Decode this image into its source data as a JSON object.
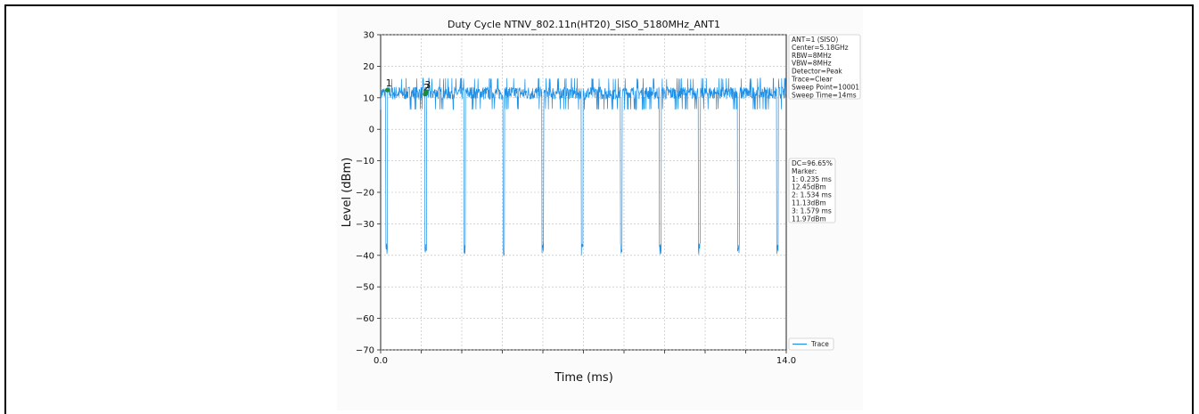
{
  "chart_data": {
    "type": "line",
    "title": "Duty Cycle NTNV_802.11n(HT20)_SISO_5180MHz_ANT1",
    "xlabel": "Time (ms)",
    "ylabel": "Level (dBm)",
    "xlim": [
      0.0,
      14.0
    ],
    "ylim": [
      -70,
      30
    ],
    "x_tick_labels": [
      "0.0",
      "14.0"
    ],
    "y_ticks": [
      30,
      20,
      10,
      0,
      -10,
      -20,
      -30,
      -40,
      -50,
      -60,
      -70
    ],
    "y_tick_labels": [
      "30",
      "20",
      "10",
      "0",
      "−10",
      "−20",
      "−30",
      "−40",
      "−50",
      "−60",
      "−70"
    ],
    "grid": true,
    "legend": "bottom-right",
    "series": [
      {
        "name": "Trace",
        "color": "#1e8fe6",
        "signal_level_range_dBm": [
          7,
          16
        ],
        "gap_floor_dBm": -40,
        "gap_times_ms": [
          0.2,
          1.55,
          2.9,
          4.25,
          5.6,
          6.95,
          8.3,
          9.65,
          11.0,
          12.35,
          13.7
        ]
      }
    ],
    "markers": [
      {
        "label": "1",
        "x": 0.235,
        "y": 12.45
      },
      {
        "label": "2",
        "x": 1.534,
        "y": 11.13
      },
      {
        "label": "3",
        "x": 1.579,
        "y": 11.97
      }
    ],
    "settings_box": {
      "lines": [
        "ANT=1 (SISO)",
        "Center=5.18GHz",
        "RBW=8MHz",
        "VBW=8MHz",
        "Detector=Peak",
        "Trace=Clear",
        "Sweep Point=10001",
        "Sweep Time=14ms"
      ]
    },
    "results_box": {
      "lines": [
        "DC=96.65%",
        "Marker:",
        "1: 0.235 ms",
        "    12.45dBm",
        "2: 1.534 ms",
        "    11.13dBm",
        "3: 1.579 ms",
        "    11.97dBm"
      ]
    },
    "legend_entries": [
      "Trace"
    ]
  }
}
